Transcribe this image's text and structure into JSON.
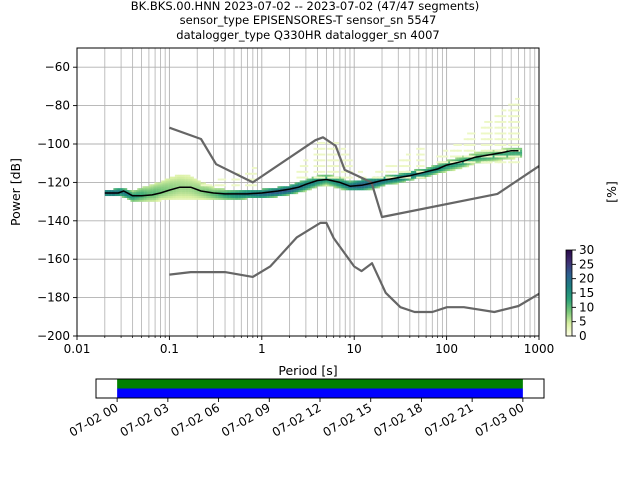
{
  "chart_data": [
    {
      "type": "heatmap",
      "title_lines": [
        "BK.BKS.00.HNN   2023-07-02 -- 2023-07-02  (47/47 segments)",
        "sensor_type EPISENSORES-T sensor_sn 5547",
        "datalogger_type Q330HR datalogger_sn 4007"
      ],
      "xlabel": "Period [s]",
      "ylabel": "Power [dB]",
      "xscale": "log",
      "xlim": [
        0.01,
        1000
      ],
      "ylim": [
        -200,
        -50
      ],
      "x_ticks": [
        {
          "value": 0.01,
          "label": "0.01"
        },
        {
          "value": 0.1,
          "label": "0.1"
        },
        {
          "value": 1,
          "label": "1"
        },
        {
          "value": 10,
          "label": "10"
        },
        {
          "value": 100,
          "label": "100"
        },
        {
          "value": 1000,
          "label": "1000"
        }
      ],
      "y_ticks": [
        -200,
        -180,
        -160,
        -140,
        -120,
        -100,
        -80,
        -60
      ],
      "grid": true,
      "colorbar": {
        "label": "[%]",
        "min": 0,
        "max": 30,
        "ticks": [
          0,
          5,
          10,
          15,
          20,
          25,
          30
        ],
        "colors": [
          "#ffffe5",
          "#d9f0a3",
          "#78c679",
          "#2aa079",
          "#1d7f80",
          "#2d5f8f",
          "#3f2f72",
          "#2a0a4a"
        ]
      },
      "series": [
        {
          "role": "low_noise_model",
          "color": "#666666",
          "x": [
            0.1,
            0.17,
            0.4,
            0.8,
            1.24,
            2.4,
            4.3,
            5.0,
            6.0,
            10.0,
            12.0,
            15.6,
            21.9,
            31.6,
            45.0,
            70.0,
            101.0,
            154.0,
            328.0,
            600.0,
            1000.0
          ],
          "y": [
            -168.0,
            -166.7,
            -166.7,
            -169.2,
            -163.7,
            -148.6,
            -141.1,
            -141.1,
            -149.0,
            -163.8,
            -166.2,
            -162.1,
            -177.5,
            -185.0,
            -187.5,
            -187.5,
            -185.0,
            -185.0,
            -187.5,
            -184.4,
            -178.0
          ]
        },
        {
          "role": "high_noise_model",
          "color": "#666666",
          "x": [
            0.1,
            0.22,
            0.32,
            0.8,
            3.8,
            4.6,
            6.3,
            7.9,
            15.4,
            20.0,
            354.8,
            1000.0
          ],
          "y": [
            -91.5,
            -97.4,
            -110.5,
            -120.0,
            -98.0,
            -96.5,
            -101.0,
            -113.5,
            -120.0,
            -138.0,
            -126.0,
            -111.5
          ]
        },
        {
          "role": "mode",
          "color": "#000000",
          "x": [
            0.02,
            0.028,
            0.032,
            0.04,
            0.05,
            0.065,
            0.08,
            0.1,
            0.13,
            0.17,
            0.22,
            0.3,
            0.4,
            0.55,
            0.7,
            1.0,
            1.5,
            2.0,
            2.5,
            3.0,
            4.0,
            5.0,
            7.0,
            9.0,
            12.0,
            15.0,
            20.0,
            30.0,
            40.0,
            60.0,
            80.0,
            100.0,
            150.0,
            200.0,
            300.0,
            400.0,
            500.0,
            600.0
          ],
          "y": [
            -125.5,
            -125.5,
            -124.5,
            -127.0,
            -127.0,
            -126.5,
            -125.5,
            -124.0,
            -122.5,
            -122.5,
            -124.5,
            -125.5,
            -126.0,
            -126.0,
            -126.0,
            -125.5,
            -124.5,
            -123.5,
            -122.5,
            -121.0,
            -119.0,
            -118.5,
            -120.0,
            -122.0,
            -121.5,
            -120.5,
            -119.0,
            -117.5,
            -116.5,
            -114.5,
            -113.0,
            -111.0,
            -109.0,
            -107.0,
            -105.5,
            -104.5,
            -103.5,
            -103.5
          ]
        }
      ],
      "density_band": [
        {
          "period": 0.02,
          "low": -127,
          "high": -124,
          "peak": 20
        },
        {
          "period": 0.025,
          "low": -127,
          "high": -124,
          "peak": 22
        },
        {
          "period": 0.03,
          "low": -127,
          "high": -123,
          "peak": 18
        },
        {
          "period": 0.035,
          "low": -128,
          "high": -124,
          "peak": 18
        },
        {
          "period": 0.04,
          "low": -130,
          "high": -125,
          "peak": 14
        },
        {
          "period": 0.05,
          "low": -130,
          "high": -123,
          "peak": 12
        },
        {
          "period": 0.06,
          "low": -130,
          "high": -122,
          "peak": 10
        },
        {
          "period": 0.07,
          "low": -130,
          "high": -121,
          "peak": 10
        },
        {
          "period": 0.08,
          "low": -129,
          "high": -120,
          "peak": 9
        },
        {
          "period": 0.1,
          "low": -129,
          "high": -118,
          "peak": 8
        },
        {
          "period": 0.13,
          "low": -129,
          "high": -116,
          "peak": 7
        },
        {
          "period": 0.17,
          "low": -129,
          "high": -117,
          "peak": 7
        },
        {
          "period": 0.22,
          "low": -129,
          "high": -120,
          "peak": 8
        },
        {
          "period": 0.3,
          "low": -129,
          "high": -123,
          "peak": 10
        },
        {
          "period": 0.4,
          "low": -129,
          "high": -124,
          "peak": 13
        },
        {
          "period": 0.55,
          "low": -129,
          "high": -124,
          "peak": 16
        },
        {
          "period": 0.7,
          "low": -128,
          "high": -124,
          "peak": 18
        },
        {
          "period": 1.0,
          "low": -128,
          "high": -124,
          "peak": 20
        },
        {
          "period": 1.5,
          "low": -127,
          "high": -123,
          "peak": 22
        },
        {
          "period": 2.0,
          "low": -126,
          "high": -122,
          "peak": 22
        },
        {
          "period": 3.0,
          "low": -124,
          "high": -119,
          "peak": 18
        },
        {
          "period": 4.0,
          "low": -122,
          "high": -117,
          "peak": 16
        },
        {
          "period": 5.0,
          "low": -121,
          "high": -116,
          "peak": 14
        },
        {
          "period": 7.0,
          "low": -123,
          "high": -118,
          "peak": 16
        },
        {
          "period": 9.0,
          "low": -124,
          "high": -120,
          "peak": 20
        },
        {
          "period": 12.0,
          "low": -124,
          "high": -119,
          "peak": 22
        },
        {
          "period": 16.0,
          "low": -123,
          "high": -118,
          "peak": 20
        },
        {
          "period": 22.0,
          "low": -121,
          "high": -117,
          "peak": 18
        },
        {
          "period": 30.0,
          "low": -120,
          "high": -116,
          "peak": 18
        },
        {
          "period": 45.0,
          "low": -118,
          "high": -114,
          "peak": 18
        },
        {
          "period": 60.0,
          "low": -117,
          "high": -113,
          "peak": 16
        },
        {
          "period": 80.0,
          "low": -115,
          "high": -111,
          "peak": 16
        },
        {
          "period": 100.0,
          "low": -114,
          "high": -109,
          "peak": 14
        },
        {
          "period": 150.0,
          "low": -112,
          "high": -107,
          "peak": 14
        },
        {
          "period": 200.0,
          "low": -110,
          "high": -105,
          "peak": 12
        },
        {
          "period": 300.0,
          "low": -109,
          "high": -104,
          "peak": 12
        },
        {
          "period": 400.0,
          "low": -108,
          "high": -103,
          "peak": 12
        },
        {
          "period": 550.0,
          "low": -107,
          "high": -102,
          "peak": 12
        },
        {
          "period": 650.0,
          "low": -107,
          "high": -102,
          "peak": 12
        }
      ],
      "sparse_excursions": [
        {
          "period_min": 0.2,
          "period_max": 0.9,
          "db_min": -122,
          "db_max": -112,
          "peak": 2
        },
        {
          "period_min": 2.0,
          "period_max": 12.0,
          "db_min": -118,
          "db_max": -98,
          "peak": 2
        },
        {
          "period_min": 12.0,
          "period_max": 60.0,
          "db_min": -118,
          "db_max": -100,
          "peak": 2
        },
        {
          "period_min": 60.0,
          "period_max": 700.0,
          "db_min": -110,
          "db_max": -73,
          "peak": 2
        }
      ]
    },
    {
      "type": "coverage",
      "tick_labels": [
        "07-02 00",
        "07-02 03",
        "07-02 06",
        "07-02 09",
        "07-02 12",
        "07-02 15",
        "07-02 18",
        "07-02 21",
        "07-03 00"
      ],
      "range_hours": [
        -1.25,
        25.25
      ],
      "bands": [
        {
          "role": "data",
          "color": "#008000",
          "start_hour": 0,
          "end_hour": 24
        },
        {
          "role": "psd_segments",
          "color": "#0000ff",
          "start_hour": 0,
          "end_hour": 24
        }
      ]
    }
  ]
}
